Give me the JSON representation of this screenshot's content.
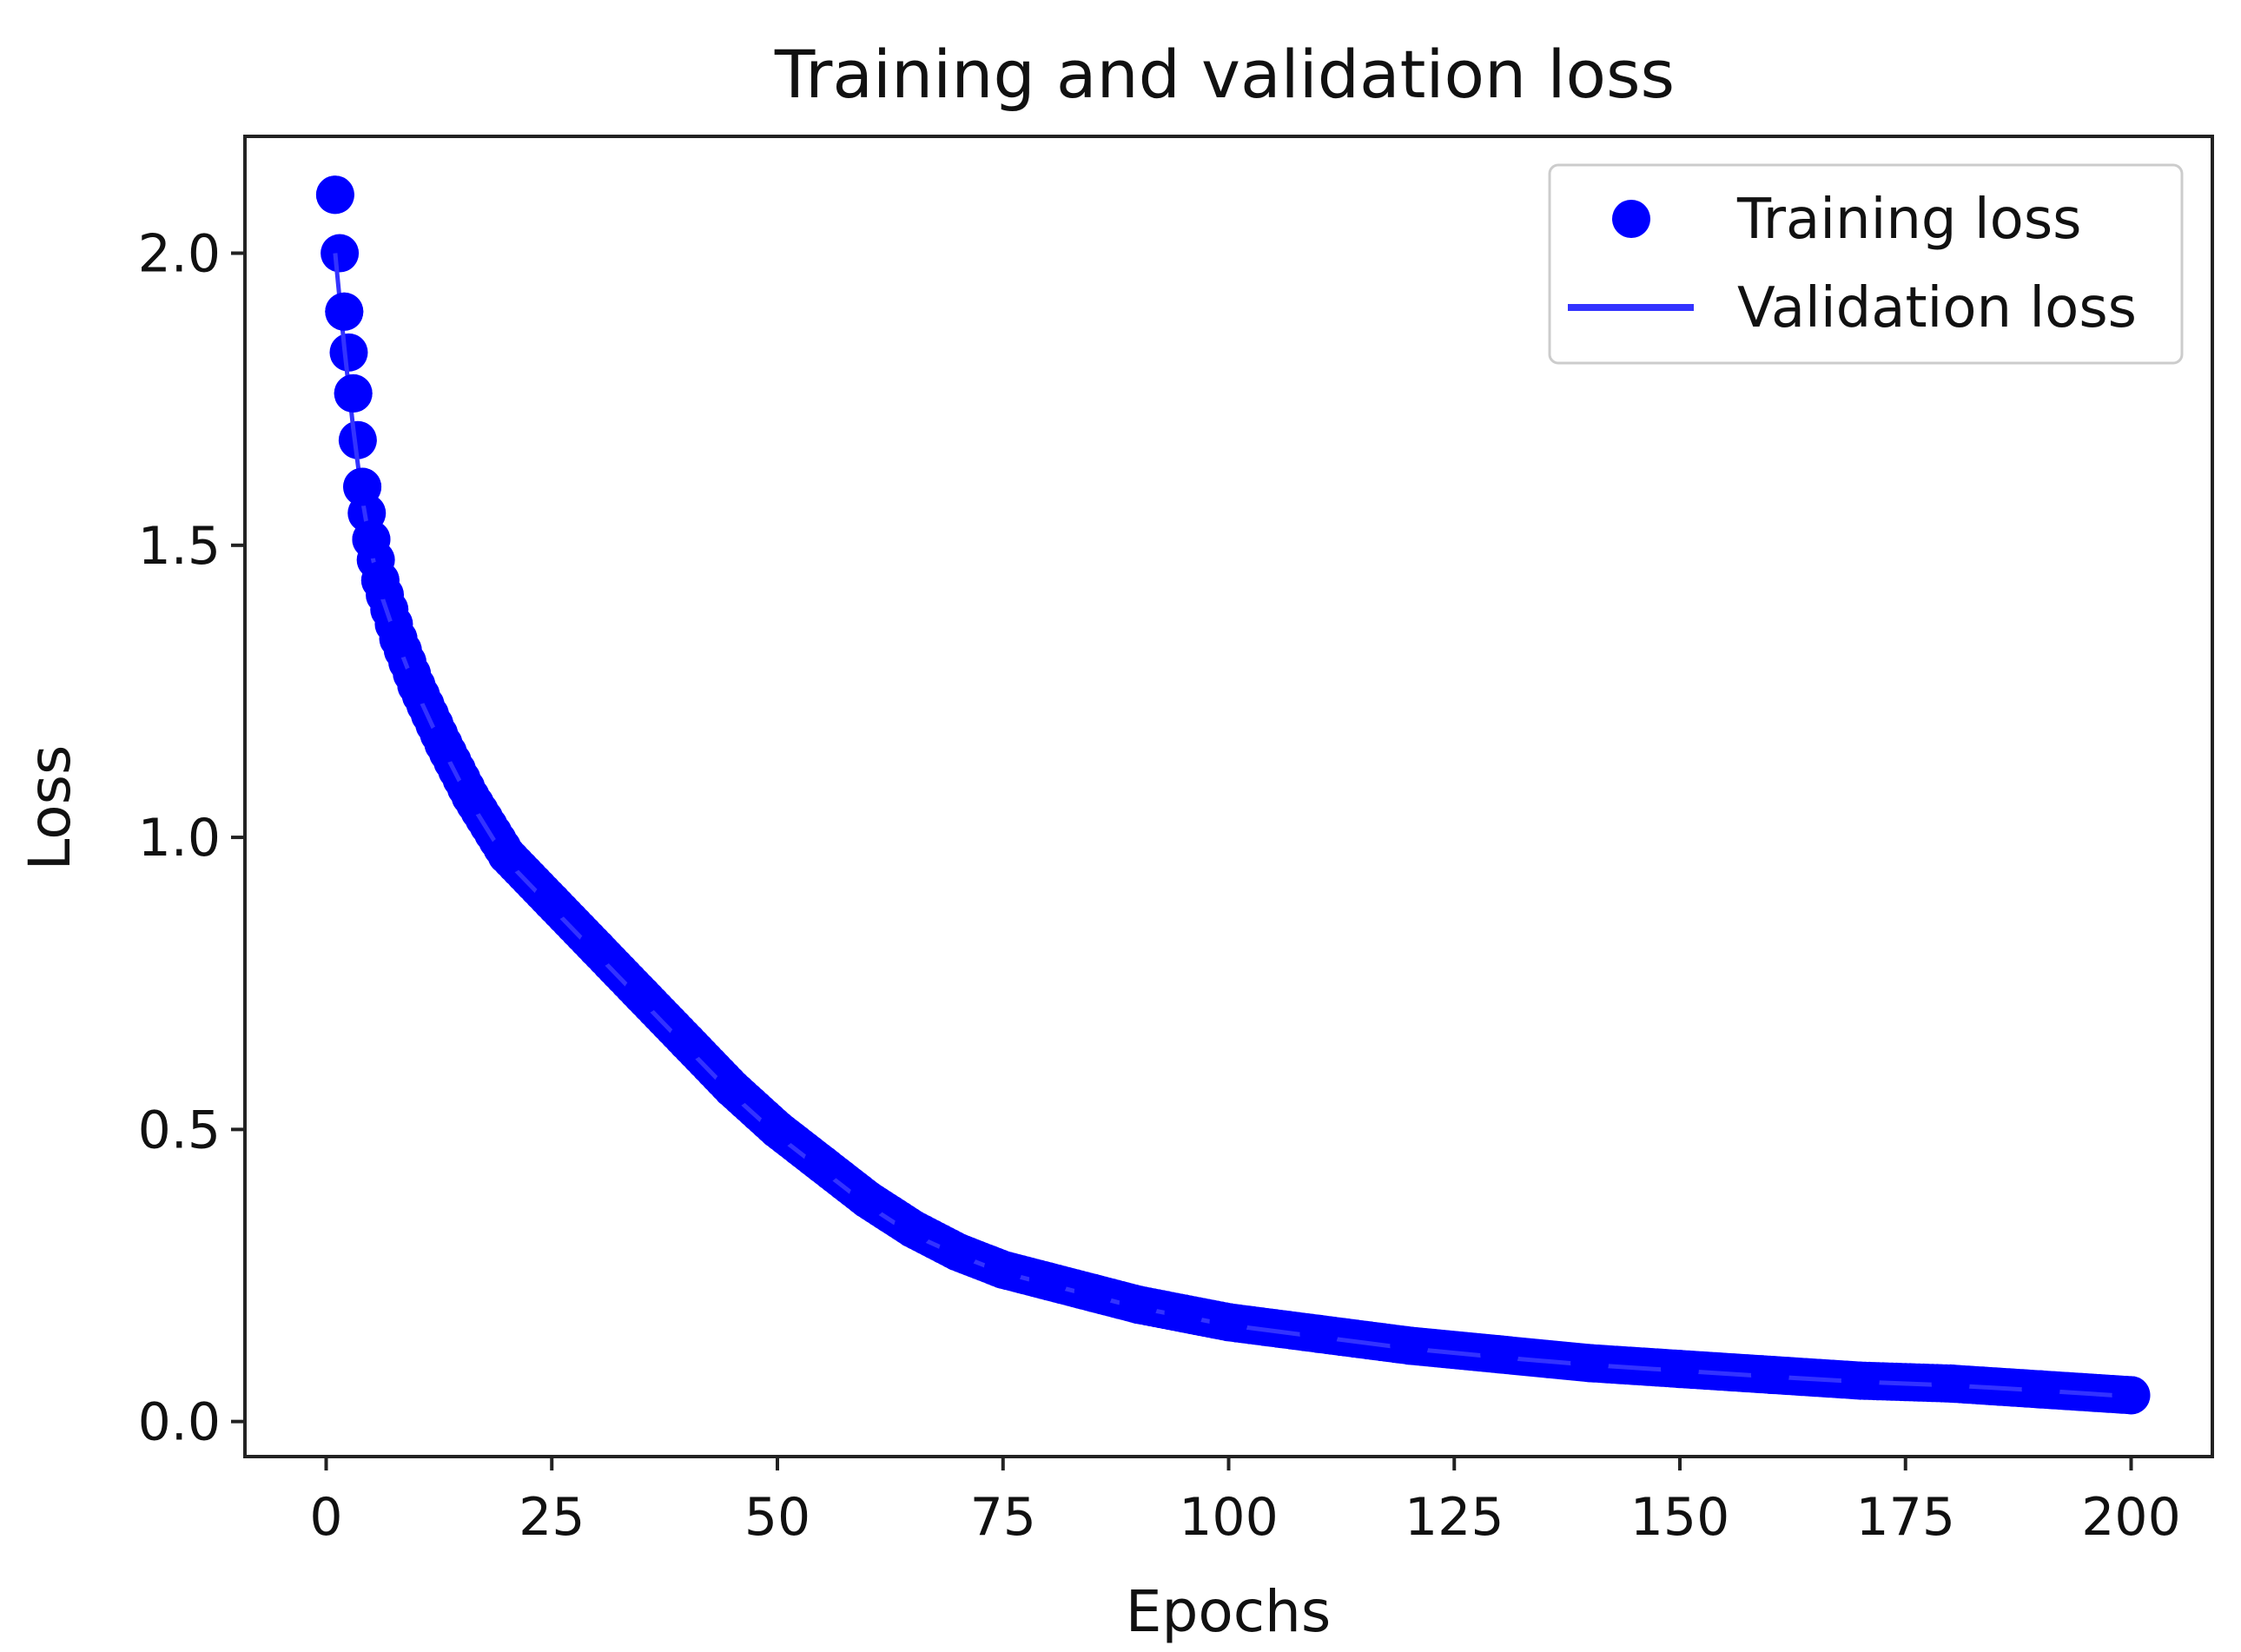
{
  "chart_data": {
    "type": "scatter",
    "title": "Training and validation loss",
    "xlabel": "Epochs",
    "ylabel": "Loss",
    "xlim": [
      -9,
      209
    ],
    "ylim": [
      -0.06,
      2.2
    ],
    "xticks": [
      0,
      25,
      50,
      75,
      100,
      125,
      150,
      175,
      200
    ],
    "xtick_labels": [
      "0",
      "25",
      "50",
      "75",
      "100",
      "125",
      "150",
      "175",
      "200"
    ],
    "yticks": [
      0.0,
      0.5,
      1.0,
      1.5,
      2.0
    ],
    "ytick_labels": [
      "0.0",
      "0.5",
      "1.0",
      "1.5",
      "2.0"
    ],
    "grid": false,
    "legend_position": "top-right",
    "colors": {
      "training": "#0000ff",
      "validation": "#3333ff"
    },
    "series": [
      {
        "name": "Training loss",
        "style": "points",
        "x": [
          1,
          2,
          3,
          4,
          5,
          6,
          8,
          10,
          13,
          16,
          20,
          25,
          30,
          35,
          40,
          45,
          50,
          55,
          60,
          65,
          70,
          75,
          80,
          85,
          90,
          95,
          100,
          110,
          120,
          130,
          140,
          150,
          160,
          170,
          180,
          190,
          200
        ],
        "y": [
          2.1,
          1.9,
          1.76,
          1.6,
          1.51,
          1.44,
          1.34,
          1.26,
          1.16,
          1.07,
          0.97,
          0.89,
          0.81,
          0.73,
          0.65,
          0.57,
          0.5,
          0.44,
          0.38,
          0.33,
          0.29,
          0.26,
          0.24,
          0.22,
          0.2,
          0.185,
          0.17,
          0.15,
          0.13,
          0.115,
          0.1,
          0.09,
          0.08,
          0.07,
          0.065,
          0.055,
          0.045
        ]
      },
      {
        "name": "Validation loss",
        "style": "line",
        "x": [
          1,
          2,
          3,
          4,
          5,
          6,
          8,
          10,
          13,
          16,
          20,
          25,
          30,
          35,
          40,
          45,
          50,
          55,
          60,
          65,
          70,
          75,
          80,
          85,
          90,
          95,
          100,
          110,
          120,
          130,
          140,
          150,
          160,
          170,
          180,
          190,
          200
        ],
        "y": [
          2.0,
          1.84,
          1.7,
          1.58,
          1.49,
          1.42,
          1.33,
          1.25,
          1.15,
          1.06,
          0.96,
          0.88,
          0.8,
          0.72,
          0.64,
          0.56,
          0.49,
          0.43,
          0.37,
          0.32,
          0.285,
          0.255,
          0.235,
          0.215,
          0.195,
          0.18,
          0.165,
          0.145,
          0.125,
          0.11,
          0.097,
          0.087,
          0.077,
          0.068,
          0.062,
          0.053,
          0.043
        ]
      }
    ]
  }
}
